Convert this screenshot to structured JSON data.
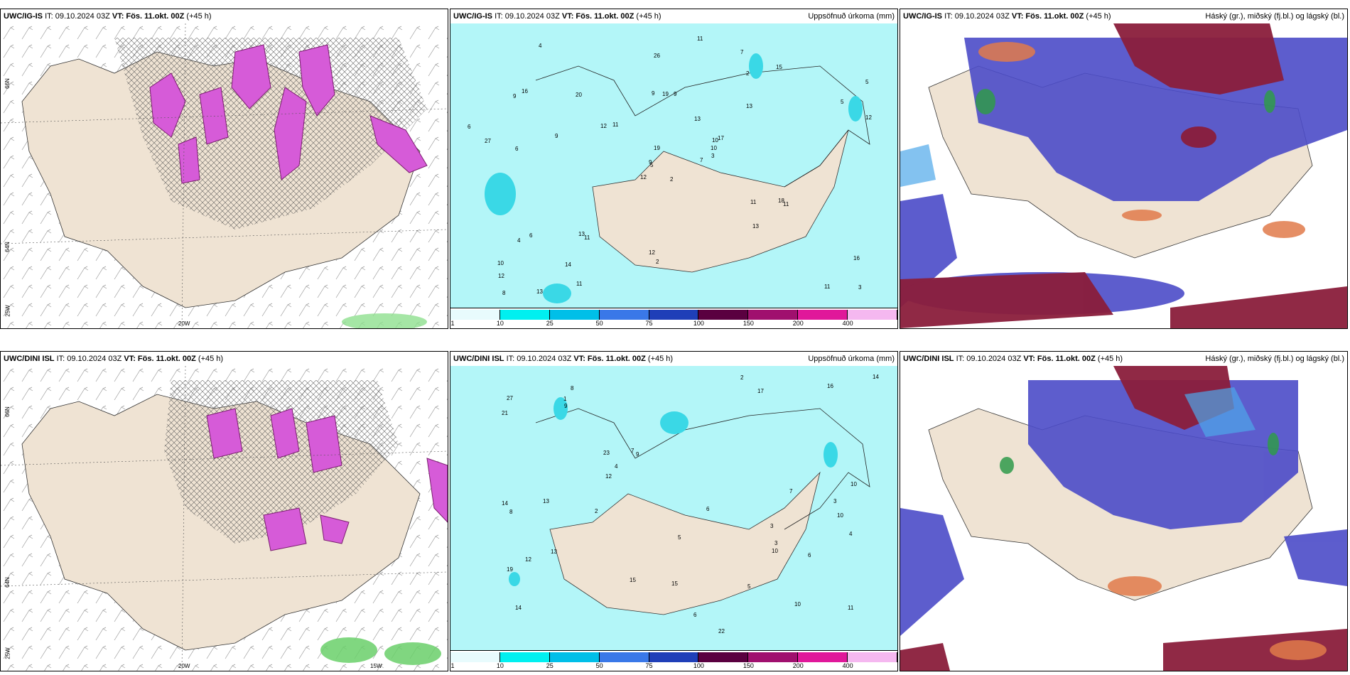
{
  "colors": {
    "land": "#efe3d3",
    "ocean_precip": "#b3f6f8",
    "purple_precip": "#d65bd8",
    "dark_purple": "#7a1f6e",
    "cloud_blue": "#4b4bc8",
    "cloud_red": "#8a1d3b",
    "cloud_light_blue": "#4fa8ea",
    "cloud_green": "#2f9a4a",
    "cloud_orange": "#e07a4a"
  },
  "panels": [
    {
      "model": "UWC/IG-IS",
      "init": "IT: 09.10.2024 03Z",
      "vt_label": "VT:",
      "vt": "Fös. 11.okt. 00Z",
      "lead": "(+45 h)",
      "right": ""
    },
    {
      "model": "UWC/IG-IS",
      "init": "IT: 09.10.2024 03Z",
      "vt_label": "VT:",
      "vt": "Fös. 11.okt. 00Z",
      "lead": "(+45 h)",
      "right": "Uppsöfnuð úrkoma (mm)"
    },
    {
      "model": "UWC/IG-IS",
      "init": "IT: 09.10.2024 03Z",
      "vt_label": "VT:",
      "vt": "Fös. 11.okt. 00Z",
      "lead": "(+45 h)",
      "right": "Háský (gr.), miðský (fj.bl.) og lágský (bl.)"
    },
    {
      "model": "UWC/DINI ISL",
      "init": "IT: 09.10.2024 03Z",
      "vt_label": "VT:",
      "vt": "Fös. 11.okt. 00Z",
      "lead": "(+45 h)",
      "right": ""
    },
    {
      "model": "UWC/DINI ISL",
      "init": "IT: 09.10.2024 03Z",
      "vt_label": "VT:",
      "vt": "Fös. 11.okt. 00Z",
      "lead": "(+45 h)",
      "right": "Uppsöfnuð úrkoma (mm)"
    },
    {
      "model": "UWC/DINI ISL",
      "init": "IT: 09.10.2024 03Z",
      "vt_label": "VT:",
      "vt": "Fös. 11.okt. 00Z",
      "lead": "(+45 h)",
      "right": "Háský (gr.), miðský (fj.bl.) og lágský (bl.)"
    }
  ],
  "colorbar": {
    "ticks": [
      "1",
      "10",
      "25",
      "50",
      "75",
      "100",
      "150",
      "200",
      "400"
    ],
    "colors": [
      "#e8fbfd",
      "#00f0f0",
      "#00bfe8",
      "#3a78e8",
      "#1f3fb8",
      "#5a0040",
      "#a0106e",
      "#e0189a",
      "#f5b8f0"
    ]
  },
  "axis_labels": {
    "lat_66": "66N",
    "lat_64": "64N",
    "lon_20": "20W",
    "lon_25": "25W",
    "lon_15": "15W"
  },
  "precip_values_top": [
    "2",
    "9",
    "5",
    "10",
    "10",
    "11",
    "7",
    "9",
    "2",
    "7",
    "4",
    "3",
    "6",
    "5",
    "12",
    "13",
    "13",
    "9",
    "13",
    "6",
    "11",
    "12",
    "14",
    "19",
    "17",
    "11",
    "16",
    "26",
    "27",
    "11",
    "12",
    "9",
    "12",
    "19",
    "20",
    "15",
    "13",
    "11",
    "16",
    "18",
    "11",
    "12",
    "9",
    "13",
    "11",
    "6",
    "10",
    "8",
    "2",
    "3",
    "4",
    "5"
  ],
  "precip_values_bottom": [
    "3",
    "10",
    "14",
    "8",
    "9",
    "10",
    "19",
    "17",
    "23",
    "22",
    "21",
    "14",
    "27",
    "11",
    "15",
    "10",
    "5",
    "6",
    "7",
    "13",
    "14",
    "16",
    "12",
    "4",
    "2",
    "1",
    "3",
    "8",
    "9",
    "7",
    "6",
    "5",
    "4",
    "2",
    "3",
    "6",
    "10",
    "13",
    "15",
    "12"
  ]
}
